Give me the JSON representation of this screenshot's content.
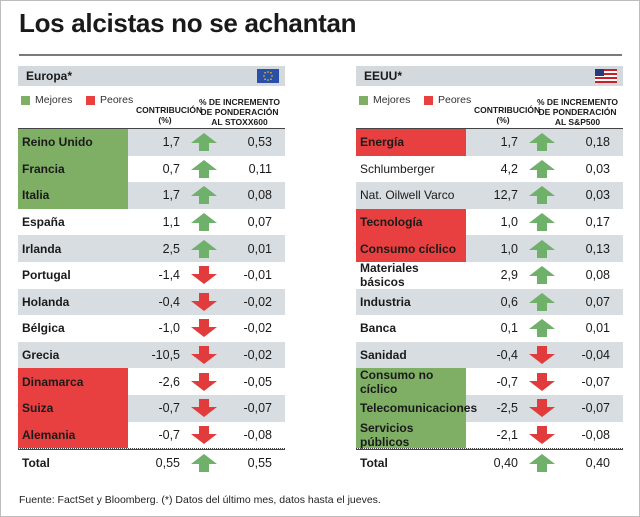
{
  "title": "Los alcistas no se achantan",
  "legend": {
    "better": "Mejores",
    "worse": "Peores"
  },
  "columns": {
    "contribution": "CONTRIBUCIÓN (%)",
    "europe_weight": "% DE INCREMENTO DE PONDERACIÓN AL STOXX600",
    "us_weight": "% DE INCREMENTO DE PONDERACIÓN AL S&P500"
  },
  "colors": {
    "green": "#7fae65",
    "red": "#e84040",
    "arrow_up": "#6fb06a",
    "arrow_down": "#e23b3b"
  },
  "europe": {
    "title": "Europa*",
    "flag": "eu-flag-icon",
    "rows": [
      {
        "name": "Reino Unido",
        "contribution": "1,7",
        "trend": "up",
        "weight": "0,53",
        "highlight": "green"
      },
      {
        "name": "Francia",
        "contribution": "0,7",
        "trend": "up",
        "weight": "0,11",
        "highlight": "green"
      },
      {
        "name": "Italia",
        "contribution": "1,7",
        "trend": "up",
        "weight": "0,08",
        "highlight": "green"
      },
      {
        "name": "España",
        "contribution": "1,1",
        "trend": "up",
        "weight": "0,07",
        "highlight": "none"
      },
      {
        "name": "Irlanda",
        "contribution": "2,5",
        "trend": "up",
        "weight": "0,01",
        "highlight": "none"
      },
      {
        "name": "Portugal",
        "contribution": "-1,4",
        "trend": "down",
        "weight": "-0,01",
        "highlight": "none"
      },
      {
        "name": "Holanda",
        "contribution": "-0,4",
        "trend": "down",
        "weight": "-0,02",
        "highlight": "none"
      },
      {
        "name": "Bélgica",
        "contribution": "-1,0",
        "trend": "down",
        "weight": "-0,02",
        "highlight": "none"
      },
      {
        "name": "Grecia",
        "contribution": "-10,5",
        "trend": "down",
        "weight": "-0,02",
        "highlight": "none"
      },
      {
        "name": "Dinamarca",
        "contribution": "-2,6",
        "trend": "down",
        "weight": "-0,05",
        "highlight": "red"
      },
      {
        "name": "Suiza",
        "contribution": "-0,7",
        "trend": "down",
        "weight": "-0,07",
        "highlight": "red"
      },
      {
        "name": "Alemania",
        "contribution": "-0,7",
        "trend": "down",
        "weight": "-0,08",
        "highlight": "red"
      }
    ],
    "total": {
      "name": "Total",
      "contribution": "0,55",
      "trend": "up",
      "weight": "0,55"
    }
  },
  "usa": {
    "title": "EEUU*",
    "flag": "us-flag-icon",
    "rows": [
      {
        "name": "Energía",
        "contribution": "1,7",
        "trend": "up",
        "weight": "0,18",
        "highlight": "red"
      },
      {
        "name": "Schlumberger",
        "contribution": "4,2",
        "trend": "up",
        "weight": "0,03",
        "highlight": "plain"
      },
      {
        "name": "Nat. Oilwell Varco",
        "contribution": "12,7",
        "trend": "up",
        "weight": "0,03",
        "highlight": "plain"
      },
      {
        "name": "Tecnología",
        "contribution": "1,0",
        "trend": "up",
        "weight": "0,17",
        "highlight": "red"
      },
      {
        "name": "Consumo cíclico",
        "contribution": "1,0",
        "trend": "up",
        "weight": "0,13",
        "highlight": "red"
      },
      {
        "name": "Materiales básicos",
        "contribution": "2,9",
        "trend": "up",
        "weight": "0,08",
        "highlight": "none"
      },
      {
        "name": "Industria",
        "contribution": "0,6",
        "trend": "up",
        "weight": "0,07",
        "highlight": "none"
      },
      {
        "name": "Banca",
        "contribution": "0,1",
        "trend": "up",
        "weight": "0,01",
        "highlight": "none"
      },
      {
        "name": "Sanidad",
        "contribution": "-0,4",
        "trend": "down",
        "weight": "-0,04",
        "highlight": "none"
      },
      {
        "name": "Consumo no cíclico",
        "contribution": "-0,7",
        "trend": "down",
        "weight": "-0,07",
        "highlight": "green"
      },
      {
        "name": "Telecomunicaciones",
        "contribution": "-2,5",
        "trend": "down",
        "weight": "-0,07",
        "highlight": "green"
      },
      {
        "name": "Servicios públicos",
        "contribution": "-2,1",
        "trend": "down",
        "weight": "-0,08",
        "highlight": "green"
      }
    ],
    "total": {
      "name": "Total",
      "contribution": "0,40",
      "trend": "up",
      "weight": "0,40"
    }
  },
  "footnote": "Fuente: FactSet y Bloomberg. (*) Datos del último mes, datos hasta el jueves."
}
